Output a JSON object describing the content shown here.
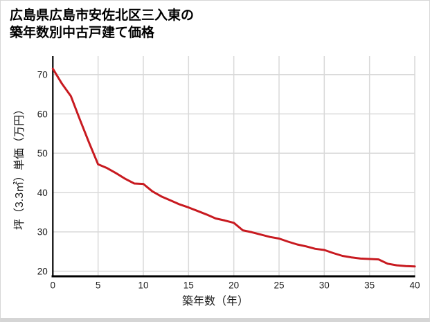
{
  "header": {
    "title_line1": "広島県広島市安佐北区三入東の",
    "title_line2": "築年数別中古戸建て価格"
  },
  "chart_data": {
    "type": "line",
    "title": "広島県広島市安佐北区三入東の築年数別中古戸建て価格",
    "xlabel": "築年数（年）",
    "ylabel": "坪（3.3㎡）単価（万円）",
    "x": [
      0,
      1,
      2,
      3,
      4,
      5,
      6,
      7,
      8,
      9,
      10,
      11,
      12,
      13,
      14,
      15,
      16,
      17,
      18,
      19,
      20,
      21,
      22,
      23,
      24,
      25,
      26,
      27,
      28,
      29,
      30,
      31,
      32,
      33,
      34,
      35,
      36,
      37,
      38,
      39,
      40
    ],
    "values": [
      71.5,
      67.7,
      64.5,
      58.5,
      52.7,
      47.2,
      46.2,
      44.9,
      43.5,
      42.3,
      42.2,
      40.3,
      39.0,
      38.0,
      37.0,
      36.2,
      35.3,
      34.4,
      33.4,
      32.9,
      32.3,
      30.4,
      29.9,
      29.3,
      28.7,
      28.3,
      27.5,
      26.8,
      26.3,
      25.7,
      25.4,
      24.6,
      23.9,
      23.5,
      23.2,
      23.1,
      23.0,
      21.9,
      21.5,
      21.3,
      21.2
    ],
    "xlim": [
      0,
      40
    ],
    "ylim": [
      18.7,
      74.7
    ],
    "xticks": [
      0,
      5,
      10,
      15,
      20,
      25,
      30,
      35,
      40
    ],
    "yticks": [
      20,
      30,
      40,
      50,
      60,
      70
    ],
    "grid": true,
    "legend": "none",
    "colors": {
      "line": "#c81a20",
      "grid": "#d9d9d9",
      "axis": "#000000",
      "tick_label": "#1a1a1a",
      "background": "#ffffff",
      "card_border": "#d6d6d6"
    }
  }
}
